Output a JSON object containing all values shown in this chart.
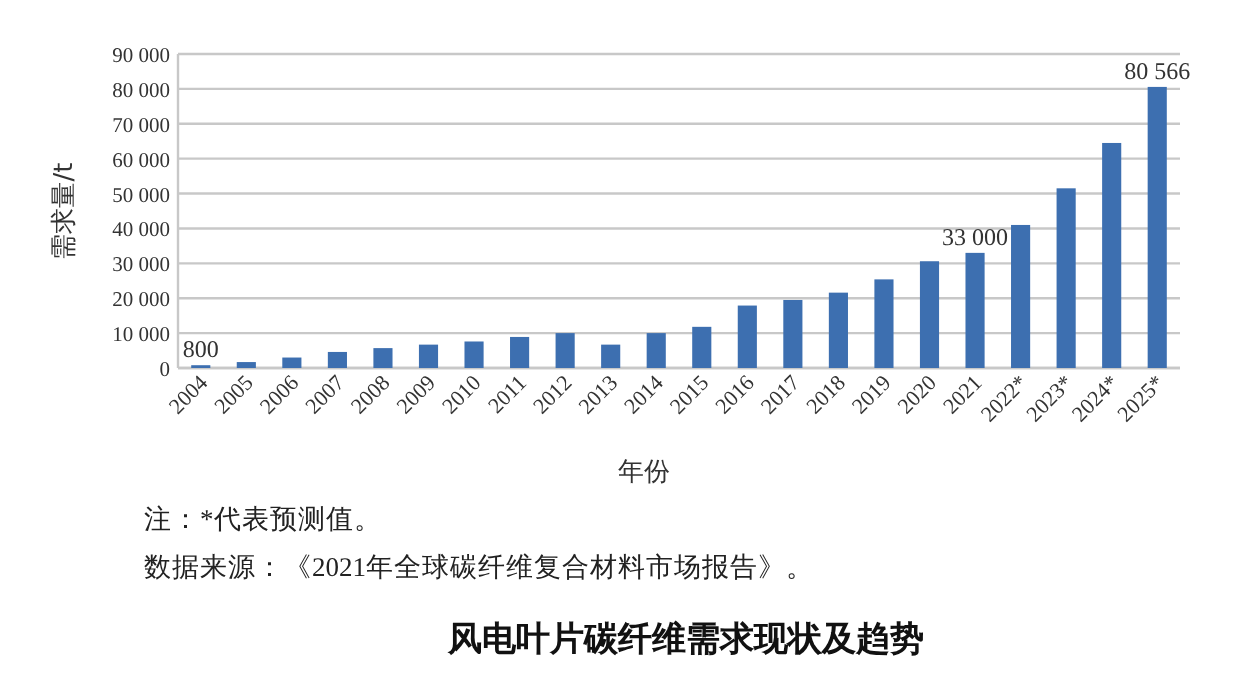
{
  "chart_data": {
    "type": "bar",
    "title": "风电叶片碳纤维需求现状及趋势",
    "xlabel": "年份",
    "ylabel": "需求量/t",
    "annotations": [
      "注：*代表预测值。",
      "数据来源：《2021年全球碳纤维复合材料市场报告》。"
    ],
    "categories": [
      "2004",
      "2005",
      "2006",
      "2007",
      "2008",
      "2009",
      "2010",
      "2011",
      "2012",
      "2013",
      "2014",
      "2015",
      "2016",
      "2017",
      "2018",
      "2019",
      "2020",
      "2021",
      "2022*",
      "2023*",
      "2024*",
      "2025*"
    ],
    "values": [
      800,
      1700,
      3000,
      4600,
      5700,
      6700,
      7600,
      8900,
      10000,
      6700,
      10000,
      11800,
      17900,
      19500,
      21600,
      25400,
      30600,
      33000,
      41000,
      51500,
      64500,
      80566
    ],
    "value_labels": [
      "800",
      null,
      null,
      null,
      null,
      null,
      null,
      null,
      null,
      null,
      null,
      null,
      null,
      null,
      null,
      null,
      null,
      "33 000",
      null,
      null,
      null,
      "80 566"
    ],
    "color": "#3d6fb0",
    "ylim": [
      0,
      90000
    ],
    "yticks": [
      0,
      {
        "value": 10000,
        "label": "10 000"
      },
      {
        "value": 20000,
        "label": "20 000"
      },
      {
        "value": 30000,
        "label": "30 000"
      },
      {
        "value": 40000,
        "label": "40 000"
      },
      {
        "value": 50000,
        "label": "50 000"
      },
      {
        "value": 60000,
        "label": "60 000"
      },
      {
        "value": 70000,
        "label": "70 000"
      },
      {
        "value": 80000,
        "label": "80 000"
      },
      {
        "value": 90000,
        "label": "90 000"
      }
    ],
    "grid": "y"
  }
}
